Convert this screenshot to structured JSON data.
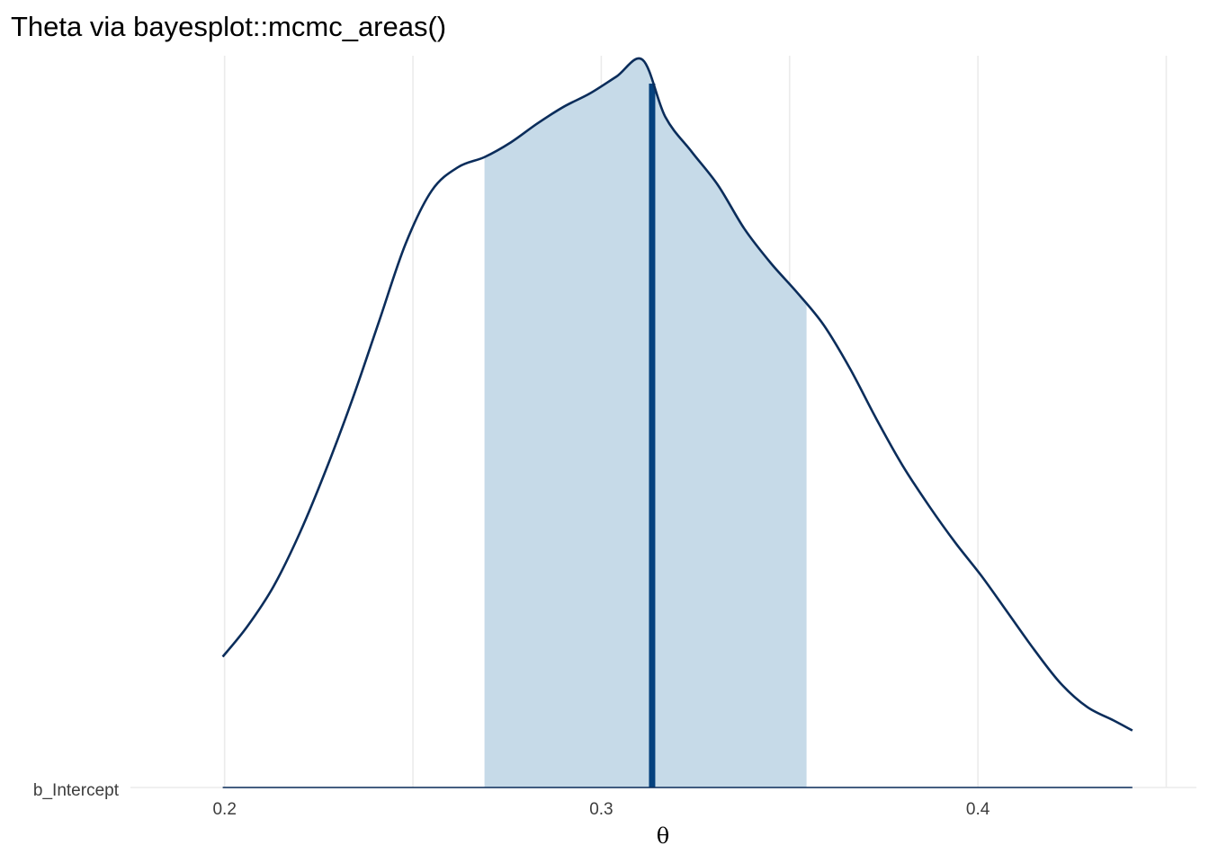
{
  "chart_data": {
    "type": "area",
    "title": "Theta via bayesplot::mcmc_areas()",
    "xlabel": "θ",
    "ylabel": "",
    "xlim": [
      0.175,
      0.458
    ],
    "x_ticks": [
      0.2,
      0.3,
      0.4
    ],
    "x_tick_labels": [
      "0.2",
      "0.3",
      "0.4"
    ],
    "x_minor_gridlines": [
      0.25,
      0.35,
      0.45
    ],
    "grid": true,
    "y_categories": [
      "b_Intercept"
    ],
    "series": [
      {
        "name": "b_Intercept",
        "density": {
          "x": [
            0.1995,
            0.206,
            0.213,
            0.22,
            0.227,
            0.234,
            0.241,
            0.248,
            0.255,
            0.262,
            0.269,
            0.276,
            0.283,
            0.29,
            0.297,
            0.304,
            0.311,
            0.317,
            0.324,
            0.331,
            0.338,
            0.345,
            0.352,
            0.359,
            0.366,
            0.373,
            0.38,
            0.387,
            0.394,
            0.401,
            0.408,
            0.415,
            0.422,
            0.429,
            0.436,
            0.441
          ],
          "y": [
            0.195,
            0.24,
            0.3,
            0.38,
            0.475,
            0.58,
            0.695,
            0.81,
            0.89,
            0.925,
            0.94,
            0.962,
            0.99,
            1.015,
            1.035,
            1.06,
            1.085,
            1.0,
            0.948,
            0.898,
            0.833,
            0.782,
            0.738,
            0.69,
            0.625,
            0.55,
            0.48,
            0.42,
            0.365,
            0.315,
            0.26,
            0.205,
            0.155,
            0.12,
            0.1,
            0.085
          ]
        },
        "interval": [
          0.269,
          0.3545
        ],
        "median": 0.3135
      }
    ],
    "colors": {
      "area_fill": "#c6dae8",
      "outline": "#0b2d5b",
      "median": "#05417e",
      "grid": "#ebebeb"
    }
  }
}
